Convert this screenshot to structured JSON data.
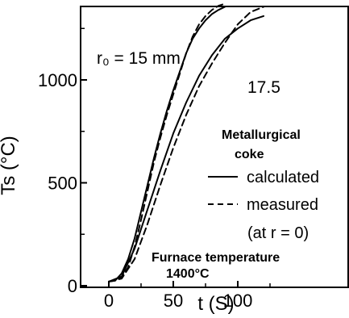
{
  "chart_data": {
    "type": "line",
    "xlabel": "t (S)",
    "ylabel": "Ts (°C)",
    "xlim": [
      0,
      140
    ],
    "ylim": [
      0,
      1400
    ],
    "x_ticks": [
      {
        "value": 0,
        "label": "0"
      },
      {
        "value": 50,
        "label": "50"
      },
      {
        "value": 100,
        "label": "100"
      }
    ],
    "y_ticks": [
      {
        "value": 0,
        "label": "0"
      },
      {
        "value": 500,
        "label": "500"
      },
      {
        "value": 1000,
        "label": "1000"
      }
    ],
    "grid": false,
    "legend": {
      "title_line1": "Metallurgical",
      "title_line2": "coke",
      "entries": [
        {
          "label": "calculated",
          "style": "solid"
        },
        {
          "label": "measured",
          "style": "dashed"
        }
      ],
      "note": "(at r = 0)"
    },
    "annotations": {
      "r0_label": "r₀ = 15 mm",
      "r175_label": "17.5",
      "furnace_line1": "Furnace temperature",
      "furnace_line2": "1400°C"
    },
    "series": [
      {
        "label": "15 mm calculated",
        "style": "solid",
        "x": [
          0,
          5,
          10,
          15,
          20,
          25,
          30,
          35,
          40,
          45,
          50,
          55,
          60,
          65,
          70,
          75,
          80,
          85,
          90
        ],
        "y": [
          20,
          25,
          60,
          130,
          230,
          360,
          490,
          620,
          740,
          850,
          950,
          1040,
          1130,
          1200,
          1250,
          1290,
          1320,
          1340,
          1355
        ]
      },
      {
        "label": "15 mm measured",
        "style": "dashed",
        "x": [
          0,
          5,
          10,
          15,
          20,
          25,
          30,
          35,
          40,
          45,
          50,
          55,
          60,
          65,
          70,
          75,
          80,
          85,
          90
        ],
        "y": [
          20,
          25,
          40,
          90,
          190,
          320,
          460,
          600,
          720,
          830,
          930,
          1030,
          1130,
          1210,
          1270,
          1310,
          1340,
          1360,
          1370
        ]
      },
      {
        "label": "17.5 mm calculated",
        "style": "solid",
        "x": [
          0,
          10,
          20,
          30,
          40,
          50,
          60,
          70,
          80,
          90,
          100,
          110,
          120
        ],
        "y": [
          20,
          45,
          180,
          370,
          560,
          740,
          890,
          1020,
          1120,
          1200,
          1250,
          1290,
          1310
        ]
      },
      {
        "label": "17.5 mm measured",
        "style": "dashed",
        "x": [
          0,
          10,
          20,
          30,
          40,
          50,
          60,
          70,
          80,
          90,
          100,
          110,
          120
        ],
        "y": [
          20,
          35,
          130,
          300,
          490,
          670,
          830,
          970,
          1080,
          1180,
          1270,
          1330,
          1355
        ]
      }
    ]
  }
}
